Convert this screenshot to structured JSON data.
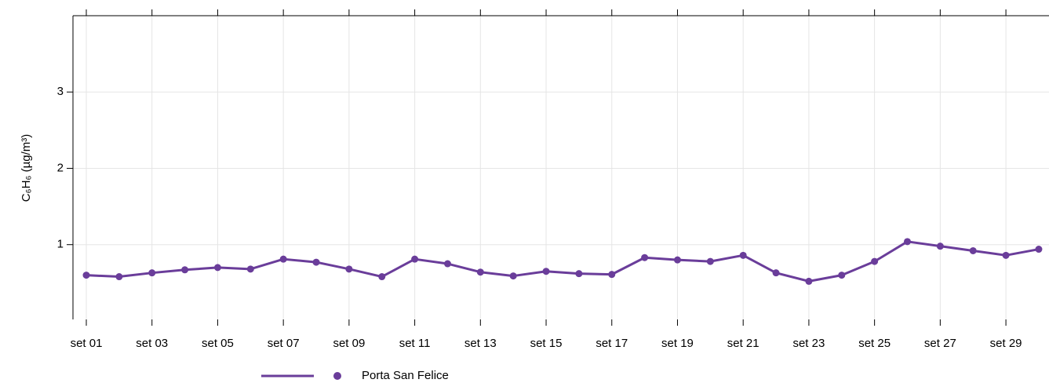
{
  "chart_data": {
    "type": "line",
    "y_label": "C₆H₆ (µg/m³)",
    "categories": [
      "set 01",
      null,
      "set 03",
      null,
      "set 05",
      null,
      "set 07",
      null,
      "set 09",
      null,
      "set 11",
      null,
      "set 13",
      null,
      "set 15",
      null,
      "set 17",
      null,
      "set 19",
      null,
      "set 21",
      null,
      "set 23",
      null,
      "set 25",
      null,
      "set 27",
      null,
      "set 29",
      null
    ],
    "series": [
      {
        "name": "Porta San Felice",
        "color": "#6a3d9a",
        "values": [
          0.6,
          0.58,
          0.63,
          0.67,
          0.7,
          0.68,
          0.81,
          0.77,
          0.68,
          0.58,
          0.81,
          0.75,
          0.64,
          0.59,
          0.65,
          0.62,
          0.61,
          0.83,
          0.8,
          0.78,
          0.86,
          0.63,
          0.52,
          0.6,
          0.78,
          1.04,
          0.98,
          0.92,
          0.86,
          0.94
        ]
      }
    ],
    "ylim": [
      0.02,
      4.0
    ],
    "yticks": [
      1,
      2,
      3
    ],
    "grid": true,
    "legend": "bottom"
  }
}
